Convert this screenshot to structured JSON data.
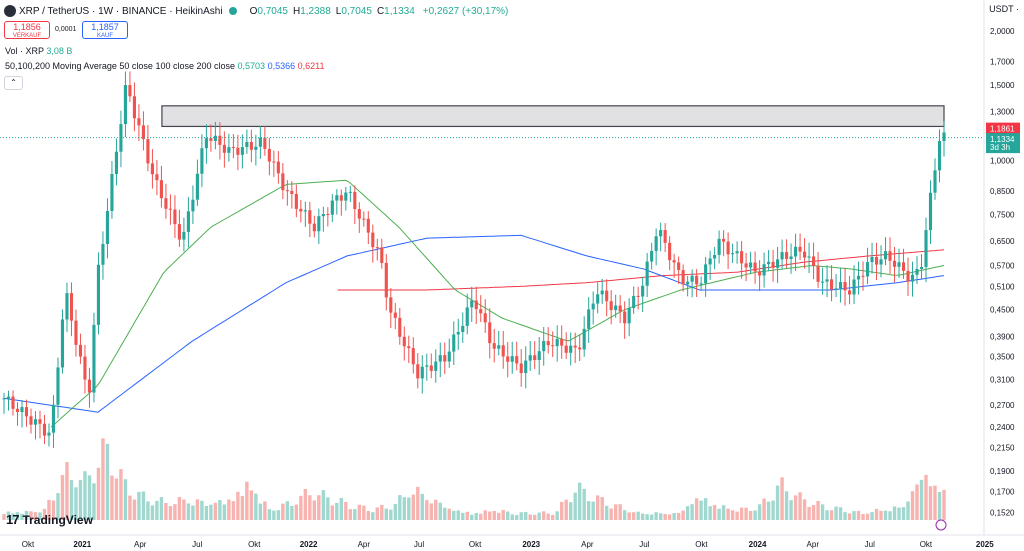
{
  "header": {
    "symbol": "XRP / TetherUS · 1W · BINANCE · HeikinAshi",
    "ohlc": [
      {
        "k": "O",
        "v": "0,7045"
      },
      {
        "k": "H",
        "v": "1,2388"
      },
      {
        "k": "L",
        "v": "0,7045"
      },
      {
        "k": "C",
        "v": "1,1334"
      }
    ],
    "change": "+0,2627 (+30,17%)"
  },
  "quotes": {
    "sell_price": "1,1856",
    "sell_label": "VERKAUF",
    "spread": "0,0001",
    "buy_price": "1,1857",
    "buy_label": "KAUF"
  },
  "indicators": {
    "vol_label": "Vol · XRP",
    "vol_value": "3,08 B",
    "ma_label": "50,100,200 Moving Average 50 close 100 close 200 close",
    "ma50": "0,5703",
    "ma100": "0,5366",
    "ma200": "0,6211"
  },
  "currency": "USDT ·",
  "logo": "TradingView",
  "colors": {
    "up": "#26a69a",
    "down": "#ef5350",
    "ma50": "#4caf50",
    "ma100": "#2962ff",
    "ma200": "#f23645"
  },
  "chart_data": {
    "type": "candlestick",
    "y_scale": "log",
    "ylim": [
      0.146,
      2.25
    ],
    "y_ticks": [
      "2,0000",
      "1,7000",
      "1,5000",
      "1,3000",
      "1,0000",
      "0,8500",
      "0,7500",
      "0,6500",
      "0,5700",
      "0,5100",
      "0,4500",
      "0,3900",
      "0,3500",
      "0,3100",
      "0,2700",
      "0,2400",
      "0,2150",
      "0,1900",
      "0,1700",
      "0,1520"
    ],
    "x_ticks": [
      {
        "label": "Okt",
        "t": 0.0
      },
      {
        "label": "2021",
        "t": 0.059,
        "bold": true
      },
      {
        "label": "Apr",
        "t": 0.122
      },
      {
        "label": "Jul",
        "t": 0.184
      },
      {
        "label": "Okt",
        "t": 0.246
      },
      {
        "label": "2022",
        "t": 0.305,
        "bold": true
      },
      {
        "label": "Apr",
        "t": 0.365
      },
      {
        "label": "Jul",
        "t": 0.425
      },
      {
        "label": "Okt",
        "t": 0.486
      },
      {
        "label": "2023",
        "t": 0.547,
        "bold": true
      },
      {
        "label": "Apr",
        "t": 0.608
      },
      {
        "label": "Jul",
        "t": 0.67
      },
      {
        "label": "Okt",
        "t": 0.732
      },
      {
        "label": "2024",
        "t": 0.793,
        "bold": true
      },
      {
        "label": "Apr",
        "t": 0.853
      },
      {
        "label": "Jul",
        "t": 0.915
      },
      {
        "label": "Okt",
        "t": 0.976
      },
      {
        "label": "2025",
        "t": 1.04,
        "bold": true
      }
    ],
    "price_points": [
      [
        0,
        0.28
      ],
      [
        0.05,
        0.23
      ],
      [
        0.065,
        0.5
      ],
      [
        0.09,
        0.28
      ],
      [
        0.1,
        0.55
      ],
      [
        0.13,
        1.5
      ],
      [
        0.16,
        0.9
      ],
      [
        0.19,
        0.65
      ],
      [
        0.215,
        1.15
      ],
      [
        0.24,
        1.05
      ],
      [
        0.275,
        1.1
      ],
      [
        0.3,
        0.85
      ],
      [
        0.33,
        0.7
      ],
      [
        0.35,
        0.8
      ],
      [
        0.365,
        0.85
      ],
      [
        0.4,
        0.6
      ],
      [
        0.41,
        0.45
      ],
      [
        0.44,
        0.32
      ],
      [
        0.47,
        0.35
      ],
      [
        0.5,
        0.48
      ],
      [
        0.52,
        0.37
      ],
      [
        0.55,
        0.33
      ],
      [
        0.58,
        0.38
      ],
      [
        0.61,
        0.36
      ],
      [
        0.63,
        0.5
      ],
      [
        0.66,
        0.43
      ],
      [
        0.68,
        0.52
      ],
      [
        0.695,
        0.7
      ],
      [
        0.72,
        0.53
      ],
      [
        0.74,
        0.52
      ],
      [
        0.76,
        0.65
      ],
      [
        0.8,
        0.55
      ],
      [
        0.83,
        0.6
      ],
      [
        0.85,
        0.62
      ],
      [
        0.87,
        0.52
      ],
      [
        0.9,
        0.5
      ],
      [
        0.92,
        0.58
      ],
      [
        0.94,
        0.6
      ],
      [
        0.965,
        0.53
      ],
      [
        0.975,
        0.56
      ],
      [
        0.985,
        0.8
      ],
      [
        0.995,
        1.13
      ]
    ],
    "ma50": [
      [
        0.05,
        0.24
      ],
      [
        0.1,
        0.3
      ],
      [
        0.17,
        0.55
      ],
      [
        0.22,
        0.7
      ],
      [
        0.3,
        0.88
      ],
      [
        0.365,
        0.9
      ],
      [
        0.42,
        0.7
      ],
      [
        0.48,
        0.5
      ],
      [
        0.53,
        0.43
      ],
      [
        0.6,
        0.38
      ],
      [
        0.66,
        0.45
      ],
      [
        0.72,
        0.5
      ],
      [
        0.8,
        0.55
      ],
      [
        0.86,
        0.57
      ],
      [
        0.9,
        0.56
      ],
      [
        0.95,
        0.54
      ],
      [
        1.0,
        0.57
      ]
    ],
    "ma100": [
      [
        0.0,
        0.28
      ],
      [
        0.1,
        0.26
      ],
      [
        0.2,
        0.38
      ],
      [
        0.3,
        0.52
      ],
      [
        0.365,
        0.6
      ],
      [
        0.45,
        0.66
      ],
      [
        0.55,
        0.67
      ],
      [
        0.62,
        0.6
      ],
      [
        0.68,
        0.56
      ],
      [
        0.74,
        0.5
      ],
      [
        0.8,
        0.5
      ],
      [
        0.88,
        0.5
      ],
      [
        0.95,
        0.52
      ],
      [
        1.0,
        0.54
      ]
    ],
    "ma200": [
      [
        0.355,
        0.5
      ],
      [
        0.45,
        0.5
      ],
      [
        0.55,
        0.51
      ],
      [
        0.62,
        0.52
      ],
      [
        0.7,
        0.54
      ],
      [
        0.78,
        0.55
      ],
      [
        0.85,
        0.58
      ],
      [
        0.92,
        0.6
      ],
      [
        1.0,
        0.62
      ]
    ],
    "volume_profile": [
      0.12,
      0.12,
      0.15,
      0.7,
      0.55,
      1.0,
      0.45,
      0.3,
      0.25,
      0.3,
      0.25,
      0.3,
      0.55,
      0.15,
      0.25,
      0.4,
      0.3,
      0.2,
      0.15,
      0.2,
      0.45,
      0.3,
      0.15,
      0.1,
      0.15,
      0.1,
      0.1,
      0.1,
      0.45,
      0.3,
      0.2,
      0.1,
      0.1,
      0.1,
      0.35,
      0.2,
      0.15,
      0.2,
      0.5,
      0.3,
      0.2,
      0.15,
      0.1,
      0.15,
      0.2,
      0.7,
      0.4
    ],
    "resistance_zone": {
      "low": 1.2,
      "high": 1.34,
      "from_t": 0.168,
      "to_t": 1.0
    },
    "price_labels": {
      "ask": "1,1861",
      "last": "1,1334",
      "countdown": "3d 3h"
    }
  }
}
